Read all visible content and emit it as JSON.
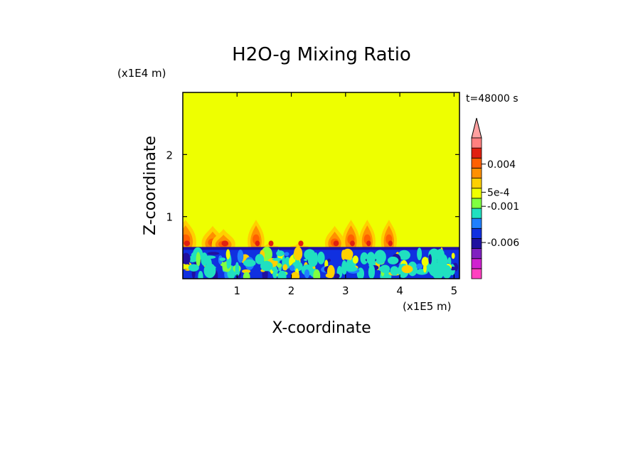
{
  "chart_data": {
    "type": "heatmap",
    "title": "H2O-g Mixing Ratio",
    "xlabel": "X-coordinate",
    "ylabel": "Z-coordinate",
    "x_scale_label": "(x1E5 m)",
    "y_scale_label": "(x1E4 m)",
    "time_label": "t=48000 s",
    "xlim": [
      0,
      5.1
    ],
    "ylim": [
      0,
      3.0
    ],
    "x_ticks": [
      1,
      2,
      3,
      4,
      5
    ],
    "y_ticks": [
      1,
      2
    ],
    "x_tick_labels": [
      "1",
      "2",
      "3",
      "4",
      "5"
    ],
    "y_tick_labels": [
      "1",
      "2"
    ],
    "colorbar": {
      "levels": [
        {
          "color": "#ff40c0"
        },
        {
          "color": "#d020d0"
        },
        {
          "color": "#8020c0"
        },
        {
          "color": "#2010a0"
        },
        {
          "color": "#1030e0"
        },
        {
          "color": "#2080ff"
        },
        {
          "color": "#20e0c0"
        },
        {
          "color": "#80ff40"
        },
        {
          "color": "#f0ff00"
        },
        {
          "color": "#ffd000"
        },
        {
          "color": "#ff9000"
        },
        {
          "color": "#ff6000"
        },
        {
          "color": "#e02010"
        },
        {
          "color": "#ff8080"
        }
      ],
      "labels": [
        "0.004",
        "5e-4",
        "-0.001",
        "-0.006"
      ],
      "background_value_color": "#eeff00"
    },
    "plumes_x": [
      0.05,
      0.55,
      0.75,
      1.35,
      1.6,
      2.15,
      2.8,
      3.1,
      3.4,
      3.8
    ],
    "plume_heights": [
      0.95,
      0.85,
      0.8,
      0.95,
      0.6,
      0.6,
      0.85,
      0.95,
      0.95,
      0.95
    ]
  }
}
